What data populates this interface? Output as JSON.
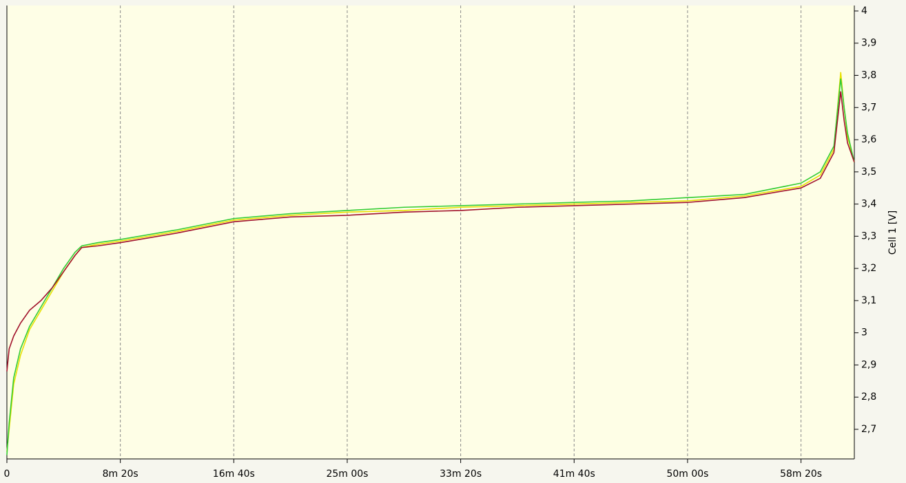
{
  "chart_data": {
    "type": "line",
    "y_label": "Cell 1 [V]",
    "x": [
      0,
      10,
      30,
      60,
      100,
      150,
      200,
      250,
      300,
      330,
      400,
      500,
      750,
      1000,
      1250,
      1500,
      1750,
      2000,
      2250,
      2500,
      2750,
      3000,
      3250,
      3500,
      3585,
      3645,
      3675,
      3690,
      3705,
      3735
    ],
    "series": [
      {
        "color": "#e8e000",
        "values": [
          2.63,
          2.7,
          2.84,
          2.93,
          3.01,
          3.07,
          3.13,
          3.19,
          3.24,
          3.265,
          3.275,
          3.285,
          3.315,
          3.35,
          3.365,
          3.375,
          3.38,
          3.39,
          3.395,
          3.4,
          3.405,
          3.41,
          3.425,
          3.455,
          3.49,
          3.57,
          3.81,
          3.7,
          3.61,
          3.53
        ]
      },
      {
        "color": "#33cc33",
        "values": [
          2.62,
          2.72,
          2.86,
          2.95,
          3.02,
          3.08,
          3.14,
          3.2,
          3.25,
          3.27,
          3.28,
          3.29,
          3.32,
          3.355,
          3.37,
          3.38,
          3.39,
          3.395,
          3.4,
          3.405,
          3.41,
          3.42,
          3.43,
          3.465,
          3.5,
          3.58,
          3.79,
          3.7,
          3.62,
          3.53
        ]
      },
      {
        "color": "#a0102a",
        "values": [
          2.88,
          2.95,
          2.99,
          3.03,
          3.07,
          3.1,
          3.14,
          3.19,
          3.24,
          3.265,
          3.27,
          3.28,
          3.31,
          3.345,
          3.36,
          3.365,
          3.375,
          3.38,
          3.39,
          3.395,
          3.4,
          3.405,
          3.42,
          3.45,
          3.48,
          3.56,
          3.75,
          3.66,
          3.59,
          3.53
        ]
      }
    ],
    "xlim": [
      0,
      3735
    ],
    "ylim": [
      2.608,
      4.017
    ],
    "xticks": [
      0,
      {
        "value": 500,
        "label": "8m 20s"
      },
      {
        "value": 1000,
        "label": "16m 40s"
      },
      {
        "value": 1500,
        "label": "25m 00s"
      },
      {
        "value": 2000,
        "label": "33m 20s"
      },
      {
        "value": 2500,
        "label": "41m 40s"
      },
      {
        "value": 3000,
        "label": "50m 00s"
      },
      {
        "value": 3500,
        "label": "58m 20s"
      }
    ],
    "yticks": [
      4,
      {
        "value": 3.9,
        "label": "3,9"
      },
      {
        "value": 3.8,
        "label": "3,8"
      },
      {
        "value": 3.7,
        "label": "3,7"
      },
      {
        "value": 3.6,
        "label": "3,6"
      },
      {
        "value": 3.5,
        "label": "3,5"
      },
      {
        "value": 3.4,
        "label": "3,4"
      },
      {
        "value": 3.3,
        "label": "3,3"
      },
      {
        "value": 3.2,
        "label": "3,2"
      },
      {
        "value": 3.1,
        "label": "3,1"
      },
      3,
      {
        "value": 2.9,
        "label": "2,9"
      },
      {
        "value": 2.8,
        "label": "2,8"
      },
      {
        "value": 2.7,
        "label": "2,7"
      }
    ],
    "grid": true
  }
}
